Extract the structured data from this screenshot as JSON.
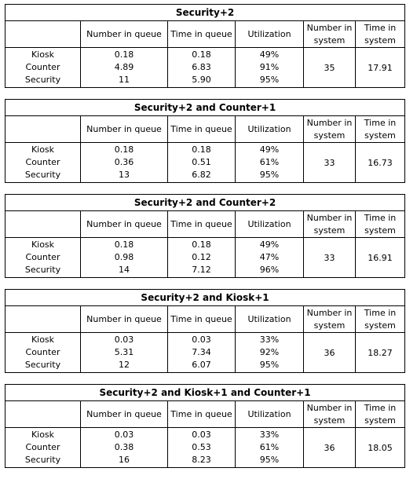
{
  "headers": {
    "col1": "",
    "number_in_queue": "Number in queue",
    "time_in_queue": "Time in queue",
    "utilization": "Utilization",
    "number_in_system": "Number in system",
    "time_in_system": "Time in system"
  },
  "scenarios": [
    {
      "title": "Security+2",
      "rows": [
        {
          "name": "Kiosk",
          "niq": "0.18",
          "tiq": "0.18",
          "util": "49%"
        },
        {
          "name": "Counter",
          "niq": "4.89",
          "tiq": "6.83",
          "util": "91%"
        },
        {
          "name": "Security",
          "niq": "11",
          "tiq": "5.90",
          "util": "95%"
        }
      ],
      "number_in_system": "35",
      "time_in_system": "17.91"
    },
    {
      "title": "Security+2 and Counter+1",
      "rows": [
        {
          "name": "Kiosk",
          "niq": "0.18",
          "tiq": "0.18",
          "util": "49%"
        },
        {
          "name": "Counter",
          "niq": "0.36",
          "tiq": "0.51",
          "util": "61%"
        },
        {
          "name": "Security",
          "niq": "13",
          "tiq": "6.82",
          "util": "95%"
        }
      ],
      "number_in_system": "33",
      "time_in_system": "16.73"
    },
    {
      "title": "Security+2 and Counter+2",
      "rows": [
        {
          "name": "Kiosk",
          "niq": "0.18",
          "tiq": "0.18",
          "util": "49%"
        },
        {
          "name": "Counter",
          "niq": "0.98",
          "tiq": "0.12",
          "util": "47%"
        },
        {
          "name": "Security",
          "niq": "14",
          "tiq": "7.12",
          "util": "96%"
        }
      ],
      "number_in_system": "33",
      "time_in_system": "16.91"
    },
    {
      "title": "Security+2 and Kiosk+1",
      "rows": [
        {
          "name": "Kiosk",
          "niq": "0.03",
          "tiq": "0.03",
          "util": "33%"
        },
        {
          "name": "Counter",
          "niq": "5.31",
          "tiq": "7.34",
          "util": "92%"
        },
        {
          "name": "Security",
          "niq": "12",
          "tiq": "6.07",
          "util": "95%"
        }
      ],
      "number_in_system": "36",
      "time_in_system": "18.27"
    },
    {
      "title": "Security+2 and Kiosk+1 and Counter+1",
      "rows": [
        {
          "name": "Kiosk",
          "niq": "0.03",
          "tiq": "0.03",
          "util": "33%"
        },
        {
          "name": "Counter",
          "niq": "0.38",
          "tiq": "0.53",
          "util": "61%"
        },
        {
          "name": "Security",
          "niq": "16",
          "tiq": "8.23",
          "util": "95%"
        }
      ],
      "number_in_system": "36",
      "time_in_system": "18.05"
    }
  ]
}
